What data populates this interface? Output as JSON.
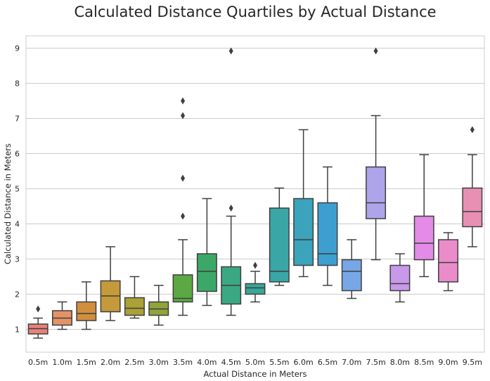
{
  "chart_data": {
    "type": "box",
    "title": "Calculated Distance Quartiles by Actual Distance",
    "xlabel": "Actual Distance in Meters",
    "ylabel": "Calculated Distance in Meters",
    "ylim": [
      0.35,
      9.35
    ],
    "yticks": [
      1,
      2,
      3,
      4,
      5,
      6,
      7,
      8,
      9
    ],
    "grid": "horizontal",
    "categories": [
      "0.5m",
      "1.0m",
      "1.5m",
      "2.0m",
      "2.5m",
      "3.0m",
      "3.5m",
      "4.0m",
      "4.5m",
      "5.0m",
      "5.5m",
      "6.0m",
      "6.5m",
      "7.0m",
      "7.5m",
      "8.0m",
      "8.5m",
      "9.0m",
      "9.5m"
    ],
    "boxes": [
      {
        "whisker_low": 0.75,
        "q1": 0.87,
        "median": 1.02,
        "q3": 1.15,
        "whisker_high": 1.32,
        "outliers": [
          1.58
        ],
        "color": "#e8817a"
      },
      {
        "whisker_low": 1.0,
        "q1": 1.12,
        "median": 1.32,
        "q3": 1.53,
        "whisker_high": 1.78,
        "outliers": [],
        "color": "#e59366"
      },
      {
        "whisker_low": 1.0,
        "q1": 1.25,
        "median": 1.45,
        "q3": 1.78,
        "whisker_high": 2.35,
        "outliers": [],
        "color": "#d18f3e"
      },
      {
        "whisker_low": 1.25,
        "q1": 1.5,
        "median": 1.95,
        "q3": 2.38,
        "whisker_high": 3.35,
        "outliers": [],
        "color": "#c49a3a"
      },
      {
        "whisker_low": 1.32,
        "q1": 1.4,
        "median": 1.6,
        "q3": 1.9,
        "whisker_high": 2.5,
        "outliers": [],
        "color": "#aba137"
      },
      {
        "whisker_low": 1.12,
        "q1": 1.4,
        "median": 1.58,
        "q3": 1.78,
        "whisker_high": 2.25,
        "outliers": [],
        "color": "#91a43a"
      },
      {
        "whisker_low": 1.4,
        "q1": 1.78,
        "median": 1.88,
        "q3": 2.55,
        "whisker_high": 3.55,
        "outliers": [
          4.22,
          5.3,
          7.08,
          7.5
        ],
        "color": "#5ca845"
      },
      {
        "whisker_low": 1.68,
        "q1": 2.08,
        "median": 2.65,
        "q3": 3.15,
        "whisker_high": 4.72,
        "outliers": [],
        "color": "#3ca867"
      },
      {
        "whisker_low": 1.4,
        "q1": 1.72,
        "median": 2.25,
        "q3": 2.78,
        "whisker_high": 4.22,
        "outliers": [
          4.45,
          8.92
        ],
        "color": "#3aa882"
      },
      {
        "whisker_low": 1.78,
        "q1": 2.0,
        "median": 2.18,
        "q3": 2.3,
        "whisker_high": 2.65,
        "outliers": [
          2.82
        ],
        "color": "#38a796"
      },
      {
        "whisker_low": 2.25,
        "q1": 2.35,
        "median": 2.65,
        "q3": 4.45,
        "whisker_high": 5.02,
        "outliers": [],
        "color": "#3aa6a6"
      },
      {
        "whisker_low": 2.5,
        "q1": 2.82,
        "median": 3.55,
        "q3": 4.72,
        "whisker_high": 6.68,
        "outliers": [],
        "color": "#3ba3bb"
      },
      {
        "whisker_low": 2.25,
        "q1": 2.82,
        "median": 3.15,
        "q3": 4.6,
        "whisker_high": 5.62,
        "outliers": [],
        "color": "#3d9fd0"
      },
      {
        "whisker_low": 1.88,
        "q1": 2.1,
        "median": 2.65,
        "q3": 2.98,
        "whisker_high": 3.55,
        "outliers": [],
        "color": "#77a7e6"
      },
      {
        "whisker_low": 2.98,
        "q1": 4.15,
        "median": 4.6,
        "q3": 5.62,
        "whisker_high": 7.08,
        "outliers": [
          8.92
        ],
        "color": "#ada4ea"
      },
      {
        "whisker_low": 1.78,
        "q1": 2.1,
        "median": 2.3,
        "q3": 2.82,
        "whisker_high": 3.15,
        "outliers": [],
        "color": "#c898ea"
      },
      {
        "whisker_low": 2.5,
        "q1": 2.98,
        "median": 3.45,
        "q3": 4.22,
        "whisker_high": 5.97,
        "outliers": [],
        "color": "#e38be6"
      },
      {
        "whisker_low": 2.1,
        "q1": 2.35,
        "median": 2.9,
        "q3": 3.55,
        "whisker_high": 3.75,
        "outliers": [],
        "color": "#ea8cca"
      },
      {
        "whisker_low": 3.35,
        "q1": 3.92,
        "median": 4.35,
        "q3": 5.02,
        "whisker_high": 5.97,
        "outliers": [
          6.68
        ],
        "color": "#e88fb4"
      }
    ]
  }
}
